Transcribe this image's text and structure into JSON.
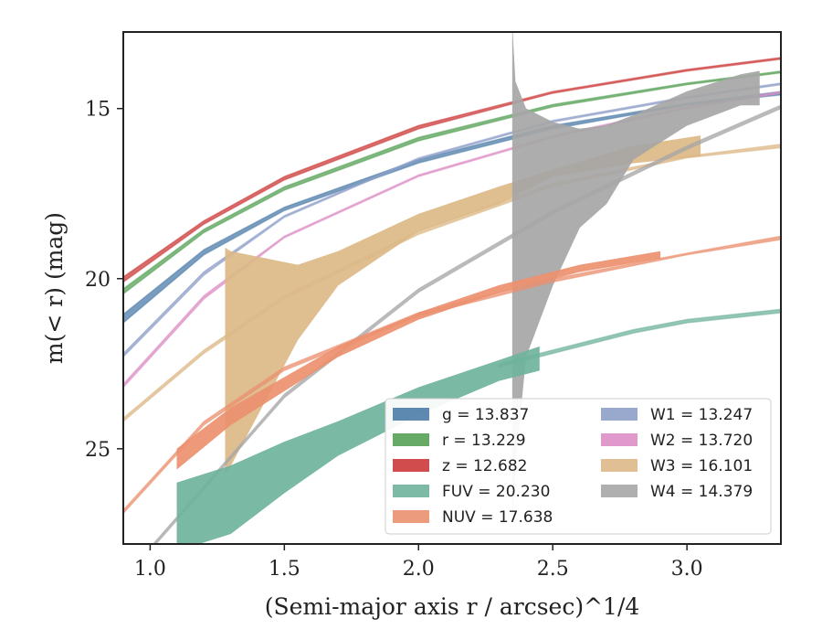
{
  "chart_data": {
    "type": "area",
    "xlabel": "(Semi-major axis r / arcsec)^1/4",
    "ylabel": "m(< r) (mag)",
    "xlim": [
      0.9,
      3.35
    ],
    "ylim": [
      27.8,
      12.75
    ],
    "y_inverted": true,
    "x_ticks": [
      1.0,
      1.5,
      2.0,
      2.5,
      3.0
    ],
    "x_tick_labels": [
      "1.0",
      "1.5",
      "2.0",
      "2.5",
      "3.0"
    ],
    "y_ticks": [
      15,
      20,
      25
    ],
    "y_tick_labels": [
      "15",
      "20",
      "25"
    ],
    "grid": false,
    "legend_placement": "lower-right",
    "legend": [
      {
        "label": "g = 13.837",
        "color": "#4c7ca8"
      },
      {
        "label": "r = 13.229",
        "color": "#55a155"
      },
      {
        "label": "z = 12.682",
        "color": "#cc3a3a"
      },
      {
        "label": "FUV = 20.230",
        "color": "#6fb39b"
      },
      {
        "label": "NUV = 17.638",
        "color": "#eb906f"
      },
      {
        "label": "W1 = 13.247",
        "color": "#8e9ec8"
      },
      {
        "label": "W2 = 13.720",
        "color": "#dc8ec4"
      },
      {
        "label": "W3 = 16.101",
        "color": "#dcb887"
      },
      {
        "label": "W4 = 14.379",
        "color": "#a6a6a6"
      }
    ],
    "series": [
      {
        "name": "g",
        "kind": "line",
        "color": "#4c7ca8",
        "x": [
          0.9,
          1.2,
          1.5,
          2.0,
          2.5,
          3.0,
          3.35
        ],
        "y_low": [
          21.3,
          19.3,
          18.0,
          16.6,
          15.6,
          14.9,
          14.6
        ],
        "y_high": [
          21.05,
          19.15,
          17.9,
          16.5,
          15.5,
          14.85,
          14.5
        ]
      },
      {
        "name": "r",
        "kind": "line",
        "color": "#55a155",
        "x": [
          0.9,
          1.2,
          1.5,
          2.0,
          2.5,
          3.0,
          3.35
        ],
        "y_low": [
          20.45,
          18.65,
          17.4,
          15.95,
          14.95,
          14.3,
          13.95
        ],
        "y_high": [
          20.3,
          18.55,
          17.3,
          15.85,
          14.88,
          14.25,
          13.9
        ]
      },
      {
        "name": "z",
        "kind": "line",
        "color": "#cc3a3a",
        "x": [
          0.9,
          1.2,
          1.5,
          2.0,
          2.5,
          3.0,
          3.35
        ],
        "y_low": [
          20.1,
          18.4,
          17.1,
          15.6,
          14.55,
          13.9,
          13.55
        ],
        "y_high": [
          19.95,
          18.3,
          17.0,
          15.5,
          14.5,
          13.85,
          13.5
        ]
      },
      {
        "name": "W1",
        "kind": "line",
        "color": "#8e9ec8",
        "x": [
          0.9,
          1.2,
          1.5,
          2.0,
          2.5,
          3.0,
          3.35
        ],
        "y_low": [
          22.3,
          19.9,
          18.2,
          16.5,
          15.4,
          14.7,
          14.3
        ],
        "y_high": [
          22.2,
          19.8,
          18.15,
          16.45,
          15.35,
          14.65,
          14.25
        ]
      },
      {
        "name": "W2",
        "kind": "line",
        "color": "#dc8ec4",
        "x": [
          0.9,
          1.2,
          1.5,
          2.0,
          2.5,
          3.0,
          3.35
        ],
        "y_low": [
          23.2,
          20.6,
          18.8,
          17.0,
          15.85,
          15.0,
          14.55
        ],
        "y_high": [
          23.1,
          20.5,
          18.75,
          16.95,
          15.8,
          14.95,
          14.5
        ]
      },
      {
        "name": "W3",
        "kind": "line",
        "color": "#dcb887",
        "x": [
          0.9,
          1.2,
          1.5,
          2.0,
          2.5,
          3.0,
          3.35
        ],
        "y_low": [
          24.2,
          22.2,
          20.6,
          18.7,
          17.3,
          16.45,
          16.15
        ],
        "y_high": [
          24.1,
          22.1,
          20.5,
          18.6,
          17.2,
          16.4,
          16.05
        ]
      },
      {
        "name": "W3",
        "kind": "band",
        "color": "#dcb887",
        "x": [
          1.28,
          1.3,
          1.55,
          1.7,
          2.0,
          2.3,
          2.5,
          2.8,
          3.05
        ],
        "y_low": [
          25.7,
          25.5,
          21.8,
          20.2,
          18.6,
          17.8,
          17.0,
          16.6,
          16.4
        ],
        "y_high": [
          19.1,
          19.2,
          19.6,
          19.2,
          18.1,
          17.3,
          16.8,
          16.1,
          15.8
        ]
      },
      {
        "name": "W4",
        "kind": "line",
        "color": "#a6a6a6",
        "x": [
          1.0,
          1.5,
          2.0,
          2.5,
          3.0,
          3.35
        ],
        "y_low": [
          28.0,
          23.5,
          20.4,
          18.1,
          16.2,
          15.0
        ],
        "y_high": [
          27.9,
          23.4,
          20.3,
          18.0,
          16.1,
          14.9
        ]
      },
      {
        "name": "W4",
        "kind": "band",
        "color": "#a6a6a6",
        "x": [
          2.35,
          2.36,
          2.4,
          2.5,
          2.6,
          2.7,
          2.8,
          3.0,
          3.2,
          3.27
        ],
        "y_low": [
          27.0,
          25.5,
          22.3,
          20.2,
          18.5,
          17.8,
          16.5,
          15.5,
          14.9,
          14.9
        ],
        "y_high": [
          12.75,
          14.2,
          15.0,
          15.4,
          15.6,
          15.5,
          15.2,
          14.5,
          14.0,
          13.9
        ]
      },
      {
        "name": "NUV",
        "kind": "line",
        "color": "#eb906f",
        "x": [
          0.9,
          1.2,
          1.5,
          2.0,
          2.5,
          3.0,
          3.35
        ],
        "y_low": [
          26.9,
          24.3,
          22.7,
          21.1,
          20.1,
          19.3,
          18.85
        ],
        "y_high": [
          26.8,
          24.2,
          22.6,
          21.0,
          20.0,
          19.25,
          18.75
        ]
      },
      {
        "name": "NUV",
        "kind": "band",
        "color": "#eb906f",
        "x": [
          1.1,
          1.3,
          1.5,
          1.7,
          2.0,
          2.3,
          2.6,
          2.9
        ],
        "y_low": [
          25.6,
          24.3,
          23.3,
          22.3,
          21.2,
          20.4,
          19.8,
          19.4
        ],
        "y_high": [
          25.0,
          23.8,
          22.9,
          22.0,
          21.0,
          20.2,
          19.6,
          19.2
        ]
      },
      {
        "name": "FUV",
        "kind": "line",
        "color": "#6fb39b",
        "x": [
          2.3,
          2.5,
          2.8,
          3.0,
          3.35
        ],
        "y_low": [
          22.6,
          22.2,
          21.6,
          21.3,
          21.0
        ],
        "y_high": [
          22.5,
          22.1,
          21.5,
          21.2,
          20.9
        ]
      },
      {
        "name": "FUV",
        "kind": "band",
        "color": "#6fb39b",
        "x": [
          1.1,
          1.3,
          1.5,
          1.7,
          2.0,
          2.3,
          2.45
        ],
        "y_low": [
          28.0,
          27.5,
          26.3,
          25.2,
          24.0,
          23.0,
          22.7
        ],
        "y_high": [
          26.0,
          25.5,
          24.8,
          24.2,
          23.2,
          22.4,
          22.0
        ]
      }
    ]
  }
}
